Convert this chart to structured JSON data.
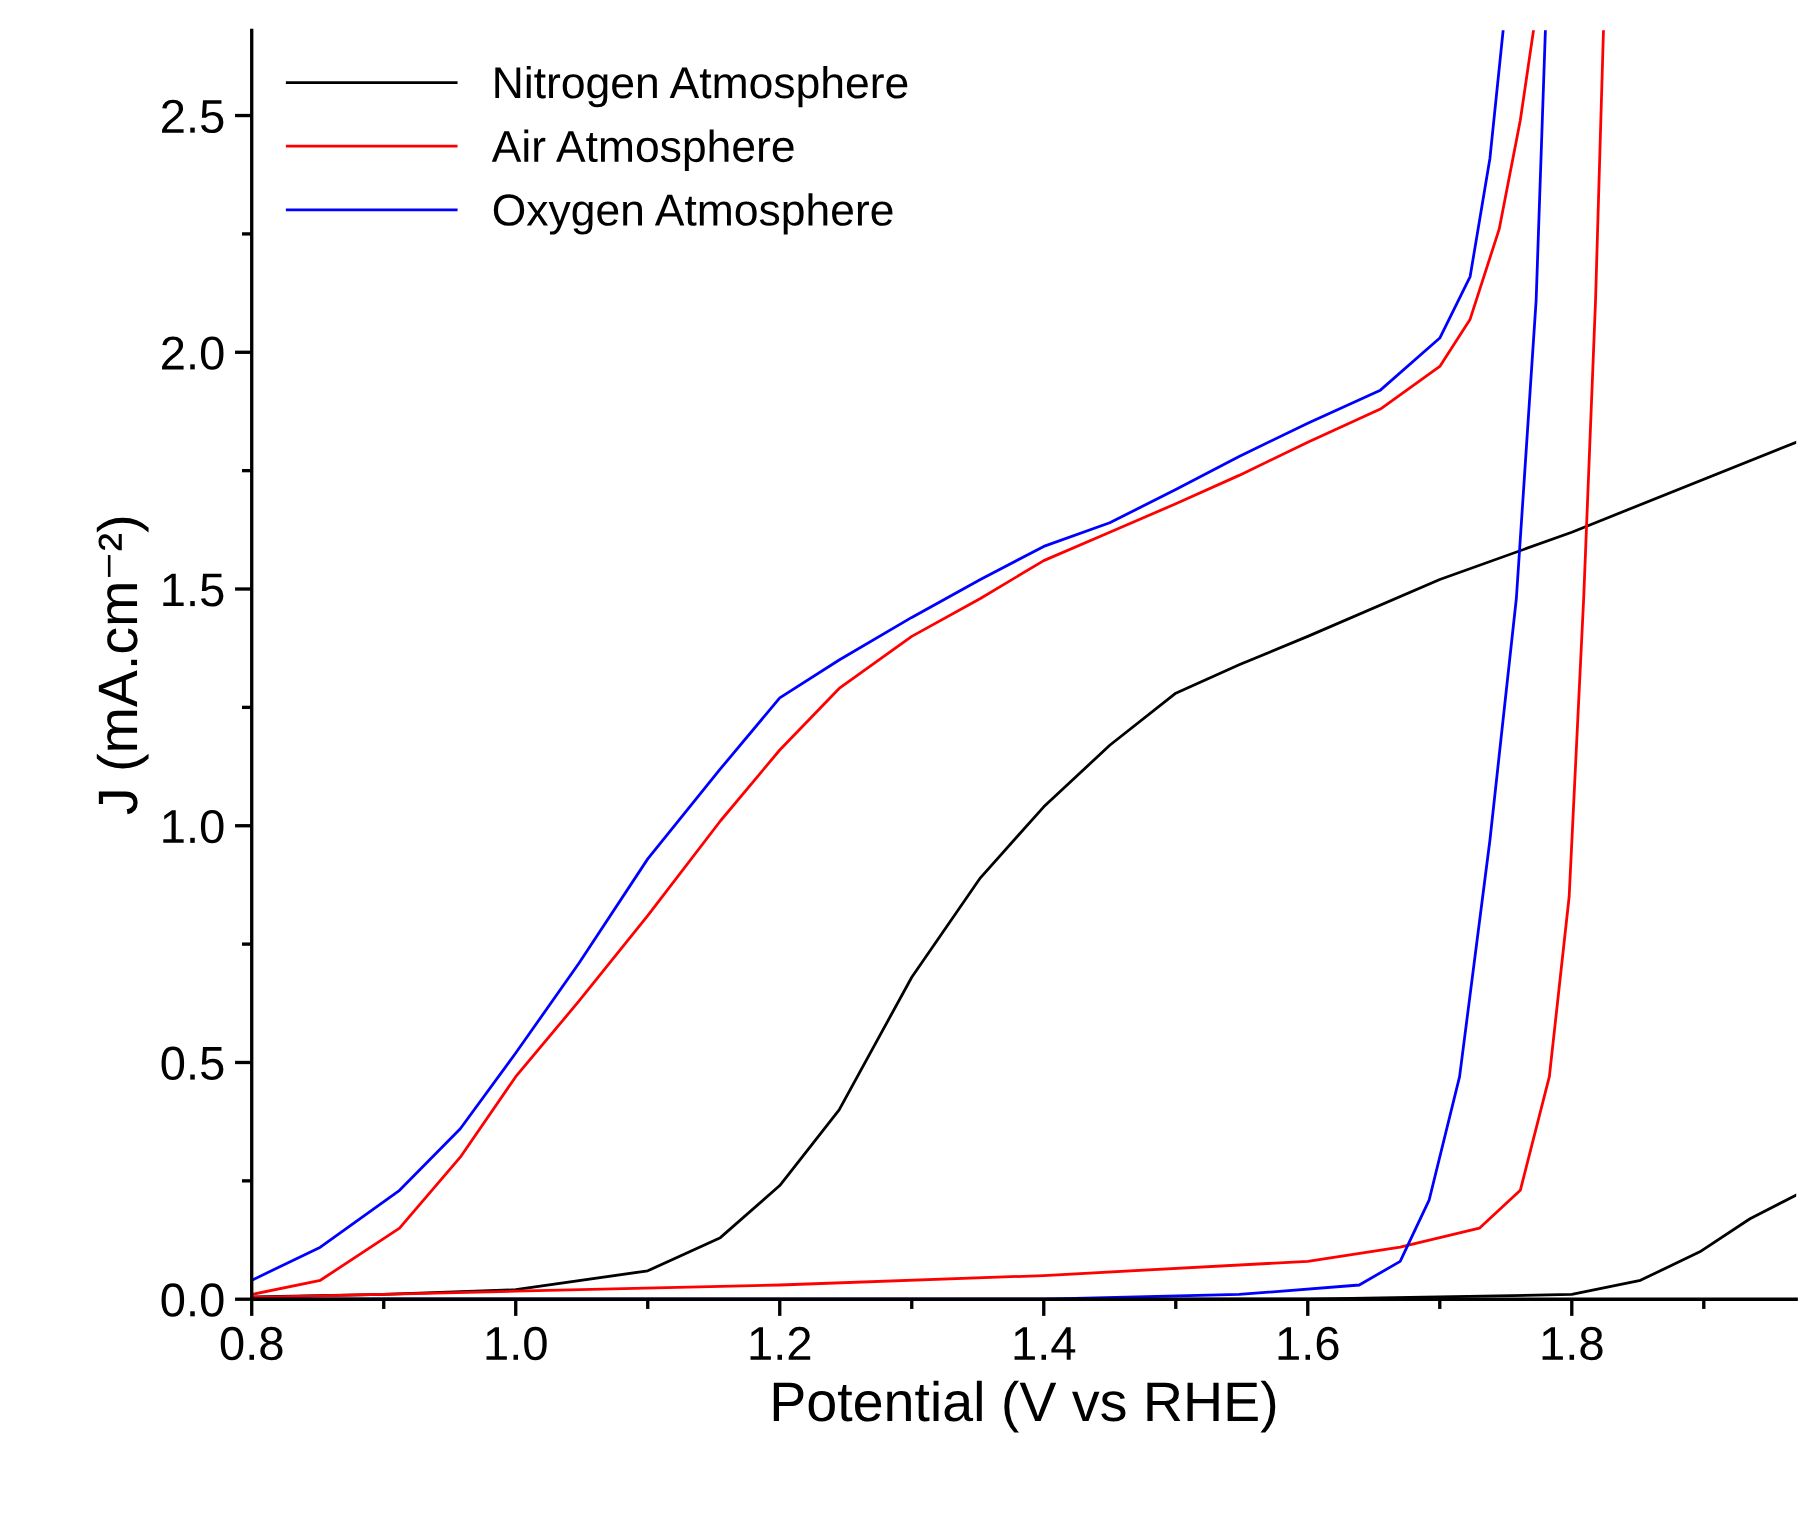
{
  "chart_data": {
    "type": "line",
    "xlabel": "Potential (V vs RHE)",
    "ylabel": "J (mA.cm⁻²)",
    "xlim": [
      0.8,
      1.97
    ],
    "ylim": [
      0,
      2.68
    ],
    "xticks": [
      0.8,
      {
        "value": 1,
        "label": "1.0"
      },
      1.2,
      1.4,
      1.6,
      1.8
    ],
    "yticks": [
      {
        "value": 0,
        "label": "0.0"
      },
      0.5,
      {
        "value": 1,
        "label": "1.0"
      },
      1.5,
      {
        "value": 2,
        "label": "2.0"
      },
      2.5
    ],
    "grid": false,
    "legend": "top left",
    "line_style": "solid",
    "marker": "none",
    "series": [
      {
        "name": "Nitrogen Atmosphere",
        "color": "#000000",
        "x": [
          0.8,
          0.9,
          1.0,
          1.1,
          1.155,
          1.2,
          1.245,
          1.3,
          1.352,
          1.4,
          1.45,
          1.5,
          1.548,
          1.6,
          1.7,
          1.8,
          1.97
        ],
        "values": [
          0.005,
          0.01,
          0.02,
          0.06,
          0.13,
          0.24,
          0.4,
          0.68,
          0.89,
          1.04,
          1.17,
          1.28,
          1.34,
          1.4,
          1.52,
          1.62,
          1.81
        ]
      },
      {
        "name": "Air Atmosphere",
        "color": "#ff0000",
        "x": [
          0.8,
          0.852,
          0.912,
          0.958,
          1.0,
          1.048,
          1.1,
          1.155,
          1.2,
          1.245,
          1.3,
          1.352,
          1.4,
          1.45,
          1.5,
          1.548,
          1.6,
          1.655,
          1.7,
          1.723,
          1.745,
          1.761,
          1.771
        ],
        "values": [
          0.01,
          0.04,
          0.15,
          0.3,
          0.47,
          0.63,
          0.81,
          1.01,
          1.16,
          1.29,
          1.4,
          1.48,
          1.56,
          1.62,
          1.68,
          1.74,
          1.81,
          1.88,
          1.97,
          2.07,
          2.26,
          2.49,
          2.68
        ]
      },
      {
        "name": "Oxygen Atmosphere",
        "color": "#0000ff",
        "x": [
          0.8,
          0.852,
          0.912,
          0.958,
          1.0,
          1.048,
          1.1,
          1.155,
          1.2,
          1.245,
          1.3,
          1.352,
          1.4,
          1.45,
          1.5,
          1.548,
          1.6,
          1.655,
          1.7,
          1.723,
          1.738,
          1.748
        ],
        "values": [
          0.04,
          0.11,
          0.23,
          0.36,
          0.52,
          0.71,
          0.93,
          1.12,
          1.27,
          1.35,
          1.44,
          1.52,
          1.59,
          1.64,
          1.71,
          1.78,
          1.85,
          1.92,
          2.03,
          2.16,
          2.41,
          2.68
        ]
      },
      {
        "color": "#000000",
        "x": [
          0.8,
          1.2,
          1.6,
          1.8,
          1.852,
          1.897,
          1.935,
          1.97
        ],
        "values": [
          0.0,
          0.0,
          0.0,
          0.01,
          0.04,
          0.1,
          0.17,
          0.22
        ]
      },
      {
        "color": "#ff0000",
        "x": [
          0.8,
          1.0,
          1.2,
          1.4,
          1.6,
          1.67,
          1.73,
          1.761,
          1.783,
          1.798,
          1.809,
          1.818,
          1.824
        ],
        "values": [
          0.004,
          0.017,
          0.03,
          0.05,
          0.08,
          0.11,
          0.15,
          0.23,
          0.47,
          0.85,
          1.48,
          2.11,
          2.68
        ]
      },
      {
        "color": "#0000ff",
        "x": [
          0.8,
          1.4,
          1.548,
          1.639,
          1.67,
          1.692,
          1.715,
          1.738,
          1.758,
          1.773,
          1.78
        ],
        "values": [
          0.0,
          0.0,
          0.01,
          0.03,
          0.08,
          0.21,
          0.47,
          0.97,
          1.48,
          2.11,
          2.68
        ]
      }
    ]
  }
}
